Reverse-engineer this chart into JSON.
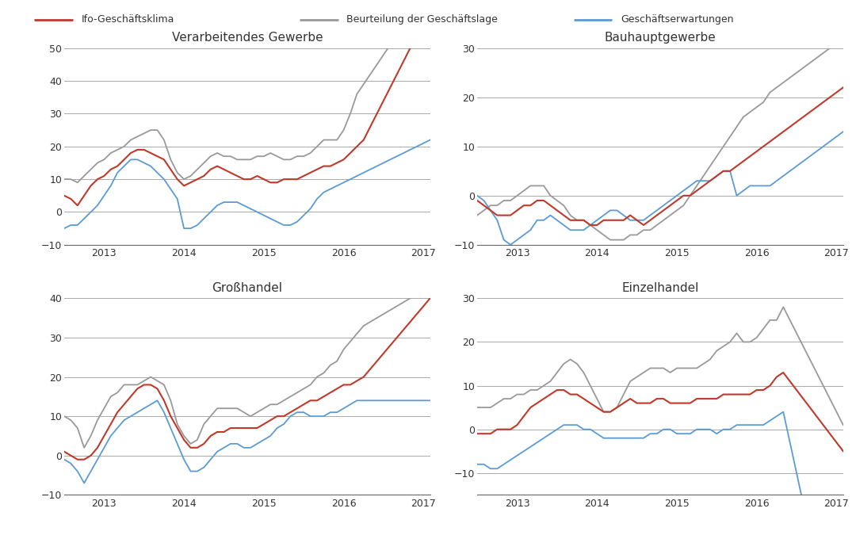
{
  "legend_labels": [
    "Ifo-Geschäftsklima",
    "Beurteilung der Geschäftslage",
    "Geschäftserwartungen"
  ],
  "legend_colors": [
    "#c0392b",
    "#999999",
    "#5b9bd5"
  ],
  "panel_titles": [
    "Verarbeitendes Gewerbe",
    "Bauhauptgewerbe",
    "Großhandel",
    "Einzelhandel"
  ],
  "background_color": "#ffffff",
  "text_color": "#333333",
  "panels": {
    "Verarbeitendes Gewerbe": {
      "ylim": [
        -10,
        50
      ],
      "yticks": [
        -10,
        0,
        10,
        20,
        30,
        40,
        50
      ],
      "red": [
        5,
        4,
        2,
        5,
        8,
        10,
        11,
        13,
        14,
        16,
        18,
        19,
        19,
        18,
        17,
        16,
        13,
        10,
        8,
        9,
        10,
        11,
        13,
        14,
        13,
        12,
        11,
        10,
        10,
        11,
        10,
        9,
        9,
        10,
        10,
        10,
        11,
        12,
        13,
        14,
        14,
        15,
        16,
        18,
        20,
        22,
        26,
        30
      ],
      "gray": [
        10,
        10,
        9,
        11,
        13,
        15,
        16,
        18,
        19,
        20,
        22,
        23,
        24,
        25,
        25,
        22,
        16,
        12,
        10,
        11,
        13,
        15,
        17,
        18,
        17,
        17,
        16,
        16,
        16,
        17,
        17,
        18,
        17,
        16,
        16,
        17,
        17,
        18,
        20,
        22,
        22,
        22,
        25,
        30,
        36,
        39,
        42,
        45
      ],
      "blue": [
        -5,
        -4,
        -4,
        -2,
        0,
        2,
        5,
        8,
        12,
        14,
        16,
        16,
        15,
        14,
        12,
        10,
        7,
        4,
        -5,
        -5,
        -4,
        -2,
        0,
        2,
        3,
        3,
        3,
        2,
        1,
        0,
        -1,
        -2,
        -3,
        -4,
        -4,
        -3,
        -1,
        1,
        4,
        6,
        7,
        8,
        9,
        10,
        11,
        12,
        13,
        14
      ]
    },
    "Bauhauptgewerbe": {
      "ylim": [
        -10,
        30
      ],
      "yticks": [
        -10,
        0,
        10,
        20,
        30
      ],
      "red": [
        -1,
        -2,
        -3,
        -4,
        -4,
        -4,
        -3,
        -2,
        -2,
        -1,
        -1,
        -2,
        -3,
        -4,
        -5,
        -5,
        -5,
        -6,
        -6,
        -5,
        -5,
        -5,
        -5,
        -4,
        -5,
        -6,
        -5,
        -4,
        -3,
        -2,
        -1,
        0,
        0,
        1,
        2,
        3,
        4,
        5,
        5,
        6,
        7,
        8,
        9,
        10,
        11,
        12,
        13,
        14
      ],
      "gray": [
        -4,
        -3,
        -2,
        -2,
        -1,
        -1,
        0,
        1,
        2,
        2,
        2,
        0,
        -1,
        -2,
        -4,
        -5,
        -5,
        -6,
        -7,
        -8,
        -9,
        -9,
        -9,
        -8,
        -8,
        -7,
        -7,
        -6,
        -5,
        -4,
        -3,
        -2,
        0,
        2,
        4,
        6,
        8,
        10,
        12,
        14,
        16,
        17,
        18,
        19,
        21,
        22,
        23,
        24
      ],
      "blue": [
        0,
        -1,
        -3,
        -5,
        -9,
        -10,
        -9,
        -8,
        -7,
        -5,
        -5,
        -4,
        -5,
        -6,
        -7,
        -7,
        -7,
        -6,
        -5,
        -4,
        -3,
        -3,
        -4,
        -5,
        -5,
        -5,
        -4,
        -3,
        -2,
        -1,
        0,
        1,
        2,
        3,
        3,
        3,
        4,
        5,
        5,
        0,
        1,
        2,
        2,
        2,
        2,
        3,
        4,
        5
      ]
    },
    "Großhandel": {
      "ylim": [
        -10,
        40
      ],
      "yticks": [
        -10,
        0,
        10,
        20,
        30,
        40
      ],
      "red": [
        1,
        0,
        -1,
        -1,
        0,
        2,
        5,
        8,
        11,
        13,
        15,
        17,
        18,
        18,
        17,
        14,
        10,
        7,
        4,
        2,
        2,
        3,
        5,
        6,
        6,
        7,
        7,
        7,
        7,
        7,
        8,
        9,
        10,
        10,
        11,
        12,
        13,
        14,
        14,
        15,
        16,
        17,
        18,
        18,
        19,
        20,
        22,
        24
      ],
      "gray": [
        10,
        9,
        7,
        2,
        5,
        9,
        12,
        15,
        16,
        18,
        18,
        18,
        19,
        20,
        19,
        18,
        14,
        8,
        5,
        3,
        4,
        8,
        10,
        12,
        12,
        12,
        12,
        11,
        10,
        11,
        12,
        13,
        13,
        14,
        15,
        16,
        17,
        18,
        20,
        21,
        23,
        24,
        27,
        29,
        31,
        33,
        34,
        35
      ],
      "blue": [
        -1,
        -2,
        -4,
        -7,
        -4,
        -1,
        2,
        5,
        7,
        9,
        10,
        11,
        12,
        13,
        14,
        11,
        7,
        3,
        -1,
        -4,
        -4,
        -3,
        -1,
        1,
        2,
        3,
        3,
        2,
        2,
        3,
        4,
        5,
        7,
        8,
        10,
        11,
        11,
        10,
        10,
        10,
        11,
        11,
        12,
        13,
        14,
        14,
        14,
        14
      ]
    },
    "Einzelhandel": {
      "ylim": [
        -15,
        30
      ],
      "yticks": [
        -10,
        0,
        10,
        20,
        30
      ],
      "red": [
        -1,
        -1,
        -1,
        0,
        0,
        0,
        1,
        3,
        5,
        6,
        7,
        8,
        9,
        9,
        8,
        8,
        7,
        6,
        5,
        4,
        4,
        5,
        6,
        7,
        6,
        6,
        6,
        7,
        7,
        6,
        6,
        6,
        6,
        7,
        7,
        7,
        7,
        8,
        8,
        8,
        8,
        8,
        9,
        9,
        10,
        12,
        13,
        11
      ],
      "gray": [
        5,
        5,
        5,
        6,
        7,
        7,
        8,
        8,
        9,
        9,
        10,
        11,
        13,
        15,
        16,
        15,
        13,
        10,
        7,
        4,
        4,
        5,
        8,
        11,
        12,
        13,
        14,
        14,
        14,
        13,
        14,
        14,
        14,
        14,
        15,
        16,
        18,
        19,
        20,
        22,
        20,
        20,
        21,
        23,
        25,
        25,
        28,
        25
      ],
      "blue": [
        -8,
        -8,
        -9,
        -9,
        -8,
        -7,
        -6,
        -5,
        -4,
        -3,
        -2,
        -1,
        0,
        1,
        1,
        1,
        0,
        0,
        -1,
        -2,
        -2,
        -2,
        -2,
        -2,
        -2,
        -2,
        -1,
        -1,
        0,
        0,
        -1,
        -1,
        -1,
        0,
        0,
        0,
        -1,
        0,
        0,
        1,
        1,
        1,
        1,
        1,
        2,
        3,
        4,
        -3
      ]
    }
  }
}
